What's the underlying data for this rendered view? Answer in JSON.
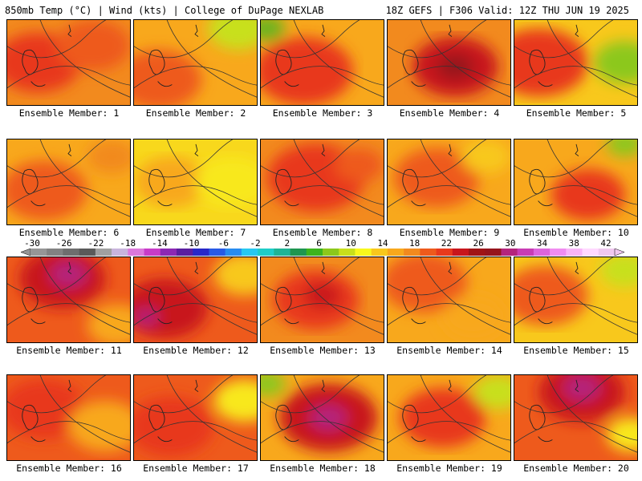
{
  "header": {
    "left": "850mb Temp (°C) | Wind (kts) | College of DuPage NEXLAB",
    "right": "18Z GEFS | F306 Valid: 12Z THU JUN 19 2025"
  },
  "member_label_prefix": "Ensemble Member: ",
  "members": [
    {
      "id": 1,
      "base": "#f28a1e",
      "hot": [
        [
          0.25,
          0.5,
          0.35,
          "#e8391c"
        ],
        [
          0.7,
          0.3,
          0.3,
          "#ee5a1c"
        ]
      ]
    },
    {
      "id": 2,
      "base": "#f8a81c",
      "hot": [
        [
          0.2,
          0.7,
          0.35,
          "#ee5a1c"
        ],
        [
          0.85,
          0.1,
          0.25,
          "#c8e01c"
        ]
      ]
    },
    {
      "id": 3,
      "base": "#f8a81c",
      "hot": [
        [
          0.35,
          0.6,
          0.4,
          "#e8391c"
        ],
        [
          0.05,
          0.1,
          0.15,
          "#6cb41c"
        ]
      ]
    },
    {
      "id": 4,
      "base": "#f28a1e",
      "hot": [
        [
          0.55,
          0.55,
          0.35,
          "#c8161c"
        ],
        [
          0.55,
          0.55,
          0.15,
          "#96141c"
        ]
      ]
    },
    {
      "id": 5,
      "base": "#f8c81c",
      "hot": [
        [
          0.2,
          0.5,
          0.4,
          "#e8391c"
        ],
        [
          0.9,
          0.5,
          0.25,
          "#8cc81c"
        ]
      ]
    },
    {
      "id": 6,
      "base": "#f8a81c",
      "hot": [
        [
          0.3,
          0.6,
          0.35,
          "#ee5a1c"
        ],
        [
          0.85,
          0.2,
          0.2,
          "#f28a1e"
        ]
      ]
    },
    {
      "id": 7,
      "base": "#f8d81c",
      "hot": [
        [
          0.3,
          0.5,
          0.3,
          "#f8a81c"
        ],
        [
          0.8,
          0.5,
          0.3,
          "#f8e81c"
        ]
      ]
    },
    {
      "id": 8,
      "base": "#f28a1e",
      "hot": [
        [
          0.45,
          0.45,
          0.4,
          "#e8391c"
        ],
        [
          0.8,
          0.3,
          0.2,
          "#ee5a1c"
        ]
      ]
    },
    {
      "id": 9,
      "base": "#f8a81c",
      "hot": [
        [
          0.4,
          0.45,
          0.35,
          "#ee5a1c"
        ],
        [
          0.8,
          0.2,
          0.2,
          "#f8c81c"
        ]
      ]
    },
    {
      "id": 10,
      "base": "#f8a81c",
      "hot": [
        [
          0.6,
          0.65,
          0.3,
          "#e8391c"
        ],
        [
          0.9,
          0.05,
          0.15,
          "#8cc81c"
        ]
      ]
    },
    {
      "id": 11,
      "base": "#ee5a1c",
      "hot": [
        [
          0.45,
          0.25,
          0.35,
          "#c8161c"
        ],
        [
          0.5,
          0.2,
          0.15,
          "#b4247c"
        ],
        [
          0.9,
          0.8,
          0.25,
          "#f8a81c"
        ]
      ]
    },
    {
      "id": 12,
      "base": "#ee5a1c",
      "hot": [
        [
          0.25,
          0.6,
          0.35,
          "#c8161c"
        ],
        [
          0.1,
          0.7,
          0.1,
          "#b4247c"
        ],
        [
          0.9,
          0.2,
          0.25,
          "#f8c81c"
        ]
      ]
    },
    {
      "id": 13,
      "base": "#f28a1e",
      "hot": [
        [
          0.45,
          0.5,
          0.35,
          "#e8391c"
        ],
        [
          0.5,
          0.45,
          0.15,
          "#c8161c"
        ]
      ]
    },
    {
      "id": 14,
      "base": "#f8a81c",
      "hot": [
        [
          0.3,
          0.3,
          0.35,
          "#ee5a1c"
        ],
        [
          0.7,
          0.7,
          0.25,
          "#f8a81c"
        ]
      ]
    },
    {
      "id": 15,
      "base": "#f8c81c",
      "hot": [
        [
          0.25,
          0.45,
          0.35,
          "#ee5a1c"
        ],
        [
          0.9,
          0.15,
          0.2,
          "#c8e01c"
        ]
      ]
    },
    {
      "id": 16,
      "base": "#ee5a1c",
      "hot": [
        [
          0.3,
          0.4,
          0.35,
          "#e8391c"
        ],
        [
          0.8,
          0.6,
          0.3,
          "#f8a81c"
        ]
      ]
    },
    {
      "id": 17,
      "base": "#ee5a1c",
      "hot": [
        [
          0.3,
          0.6,
          0.35,
          "#e8391c"
        ],
        [
          0.9,
          0.3,
          0.25,
          "#f8e81c"
        ]
      ]
    },
    {
      "id": 18,
      "base": "#f8a81c",
      "hot": [
        [
          0.55,
          0.5,
          0.4,
          "#c8161c"
        ],
        [
          0.55,
          0.5,
          0.15,
          "#b4247c"
        ],
        [
          0.05,
          0.1,
          0.15,
          "#8cc81c"
        ]
      ]
    },
    {
      "id": 19,
      "base": "#f8a81c",
      "hot": [
        [
          0.45,
          0.5,
          0.35,
          "#e8391c"
        ],
        [
          0.9,
          0.2,
          0.2,
          "#c8e01c"
        ]
      ]
    },
    {
      "id": 20,
      "base": "#ee5a1c",
      "hot": [
        [
          0.55,
          0.2,
          0.35,
          "#c8161c"
        ],
        [
          0.55,
          0.15,
          0.15,
          "#b4247c"
        ],
        [
          0.95,
          0.7,
          0.2,
          "#f8e81c"
        ]
      ]
    }
  ],
  "colorbar": {
    "labels": [
      -30,
      -26,
      -22,
      -18,
      -14,
      -10,
      -6,
      -2,
      2,
      6,
      10,
      14,
      18,
      22,
      26,
      30,
      34,
      38,
      42
    ],
    "colors": [
      "#969696",
      "#828282",
      "#6e6e6e",
      "#5a5a5a",
      "#a0a0a0",
      "#c8b4dc",
      "#dc78dc",
      "#c83cc8",
      "#8c28b4",
      "#5a1ea0",
      "#2828c8",
      "#285ae6",
      "#288cf0",
      "#28c8f0",
      "#1ecdc8",
      "#1eb496",
      "#1e9650",
      "#3cb41e",
      "#8cc81c",
      "#c8e01c",
      "#f8f81c",
      "#f8c81c",
      "#f8a81c",
      "#f28a1e",
      "#ee5a1c",
      "#e8391c",
      "#c8161c",
      "#a01416",
      "#96141c",
      "#b4247c",
      "#c83cb4",
      "#dc64dc",
      "#f08cf0",
      "#f8b4f8",
      "#ffd8ff",
      "#f0c8f0"
    ]
  }
}
